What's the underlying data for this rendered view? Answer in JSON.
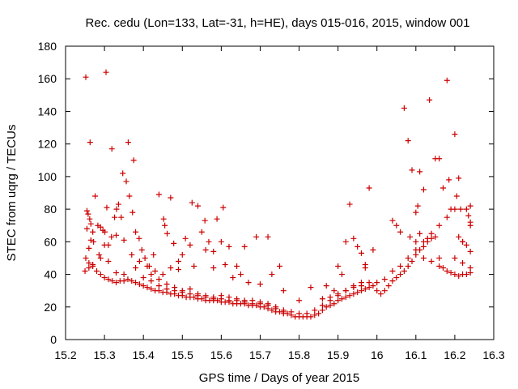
{
  "chart_data": {
    "type": "scatter",
    "title": "Rec. cedu (Lon=133, Lat=-31, h=HE), days 015-016, 2015, window 001",
    "xlabel": "GPS time / Days of year 2015",
    "ylabel": "STEC from uqrg / TECUs",
    "xlim": [
      15.2,
      16.3
    ],
    "ylim": [
      0,
      180
    ],
    "xticks": [
      15.2,
      15.3,
      15.4,
      15.5,
      15.6,
      15.7,
      15.8,
      15.9,
      16.0,
      16.1,
      16.2,
      16.3
    ],
    "xtick_labels": [
      "15.2",
      "15.3",
      "15.4",
      "15.5",
      "15.6",
      "15.7",
      "15.8",
      "15.9",
      "16",
      "16.1",
      "16.2",
      "16.3"
    ],
    "yticks": [
      0,
      20,
      40,
      60,
      80,
      100,
      120,
      140,
      160,
      180
    ],
    "ytick_labels": [
      "0",
      "20",
      "40",
      "60",
      "80",
      "100",
      "120",
      "140",
      "160",
      "180"
    ],
    "grid": false,
    "marker": "plus",
    "color": "#cc0000",
    "points": [
      [
        15.252,
        161
      ],
      [
        15.263,
        121
      ],
      [
        15.304,
        164
      ],
      [
        15.319,
        117
      ],
      [
        15.361,
        121
      ],
      [
        15.375,
        110
      ],
      [
        15.255,
        79
      ],
      [
        15.258,
        77
      ],
      [
        15.262,
        74
      ],
      [
        15.265,
        71
      ],
      [
        15.27,
        66
      ],
      [
        15.276,
        88
      ],
      [
        15.283,
        70
      ],
      [
        15.29,
        69
      ],
      [
        15.296,
        67
      ],
      [
        15.301,
        66
      ],
      [
        15.306,
        81
      ],
      [
        15.31,
        58
      ],
      [
        15.318,
        63
      ],
      [
        15.326,
        75
      ],
      [
        15.331,
        80
      ],
      [
        15.336,
        83
      ],
      [
        15.343,
        75
      ],
      [
        15.347,
        102
      ],
      [
        15.356,
        97
      ],
      [
        15.364,
        88
      ],
      [
        15.372,
        78
      ],
      [
        15.38,
        66
      ],
      [
        15.389,
        62
      ],
      [
        15.396,
        55
      ],
      [
        15.404,
        50
      ],
      [
        15.415,
        45
      ],
      [
        15.426,
        52
      ],
      [
        15.44,
        89
      ],
      [
        15.452,
        74
      ],
      [
        15.455,
        70
      ],
      [
        15.461,
        65
      ],
      [
        15.47,
        87
      ],
      [
        15.478,
        59
      ],
      [
        15.49,
        48
      ],
      [
        15.5,
        52
      ],
      [
        15.508,
        62
      ],
      [
        15.525,
        84
      ],
      [
        15.54,
        82
      ],
      [
        15.55,
        66
      ],
      [
        15.558,
        73
      ],
      [
        15.568,
        60
      ],
      [
        15.58,
        54
      ],
      [
        15.589,
        74
      ],
      [
        15.6,
        60
      ],
      [
        15.605,
        81
      ],
      [
        15.62,
        57
      ],
      [
        15.64,
        45
      ],
      [
        15.66,
        57
      ],
      [
        15.69,
        63
      ],
      [
        15.72,
        63
      ],
      [
        15.75,
        45
      ],
      [
        15.255,
        68
      ],
      [
        15.26,
        56
      ],
      [
        15.265,
        61
      ],
      [
        15.272,
        60
      ],
      [
        15.286,
        52
      ],
      [
        15.3,
        58
      ],
      [
        15.33,
        64
      ],
      [
        15.35,
        61
      ],
      [
        15.37,
        52
      ],
      [
        15.39,
        48
      ],
      [
        15.41,
        45
      ],
      [
        15.43,
        42
      ],
      [
        15.45,
        40
      ],
      [
        15.47,
        44
      ],
      [
        15.49,
        43
      ],
      [
        15.52,
        58
      ],
      [
        15.53,
        45
      ],
      [
        15.56,
        55
      ],
      [
        15.58,
        44
      ],
      [
        15.61,
        46
      ],
      [
        15.63,
        38
      ],
      [
        15.65,
        40
      ],
      [
        15.67,
        35
      ],
      [
        15.7,
        34
      ],
      [
        15.73,
        40
      ],
      [
        15.76,
        30
      ],
      [
        15.8,
        24
      ],
      [
        15.83,
        32
      ],
      [
        15.87,
        33
      ],
      [
        15.89,
        30
      ],
      [
        15.252,
        50
      ],
      [
        15.26,
        47
      ],
      [
        15.27,
        45
      ],
      [
        15.28,
        42
      ],
      [
        15.29,
        40
      ],
      [
        15.3,
        38
      ],
      [
        15.31,
        37
      ],
      [
        15.32,
        36
      ],
      [
        15.33,
        35
      ],
      [
        15.34,
        36
      ],
      [
        15.35,
        36
      ],
      [
        15.36,
        37
      ],
      [
        15.37,
        36
      ],
      [
        15.38,
        35
      ],
      [
        15.39,
        34
      ],
      [
        15.4,
        33
      ],
      [
        15.41,
        32
      ],
      [
        15.42,
        31
      ],
      [
        15.43,
        30
      ],
      [
        15.44,
        30
      ],
      [
        15.45,
        29
      ],
      [
        15.46,
        29
      ],
      [
        15.47,
        28
      ],
      [
        15.48,
        28
      ],
      [
        15.49,
        27
      ],
      [
        15.5,
        27
      ],
      [
        15.51,
        26
      ],
      [
        15.52,
        26
      ],
      [
        15.53,
        26
      ],
      [
        15.54,
        25
      ],
      [
        15.55,
        25
      ],
      [
        15.56,
        24
      ],
      [
        15.57,
        24
      ],
      [
        15.58,
        24
      ],
      [
        15.59,
        24
      ],
      [
        15.6,
        23
      ],
      [
        15.61,
        23
      ],
      [
        15.62,
        23
      ],
      [
        15.63,
        22
      ],
      [
        15.64,
        22
      ],
      [
        15.65,
        22
      ],
      [
        15.66,
        22
      ],
      [
        15.67,
        21
      ],
      [
        15.68,
        21
      ],
      [
        15.69,
        21
      ],
      [
        15.7,
        20
      ],
      [
        15.71,
        20
      ],
      [
        15.72,
        19
      ],
      [
        15.73,
        18
      ],
      [
        15.74,
        17
      ],
      [
        15.75,
        17
      ],
      [
        15.76,
        16
      ],
      [
        15.77,
        16
      ],
      [
        15.78,
        15
      ],
      [
        15.79,
        14
      ],
      [
        15.8,
        14
      ],
      [
        15.81,
        14
      ],
      [
        15.82,
        14
      ],
      [
        15.83,
        14
      ],
      [
        15.84,
        15
      ],
      [
        15.85,
        16
      ],
      [
        15.86,
        18
      ],
      [
        15.87,
        20
      ],
      [
        15.88,
        21
      ],
      [
        15.89,
        22
      ],
      [
        15.9,
        24
      ],
      [
        15.91,
        25
      ],
      [
        15.92,
        26
      ],
      [
        15.93,
        27
      ],
      [
        15.94,
        28
      ],
      [
        15.95,
        29
      ],
      [
        15.96,
        30
      ],
      [
        15.97,
        31
      ],
      [
        15.98,
        32
      ],
      [
        15.99,
        33
      ],
      [
        15.25,
        42
      ],
      [
        15.26,
        44
      ],
      [
        15.27,
        46
      ],
      [
        15.29,
        50
      ],
      [
        15.31,
        48
      ],
      [
        15.33,
        41
      ],
      [
        15.35,
        40
      ],
      [
        15.38,
        44
      ],
      [
        15.4,
        38
      ],
      [
        15.42,
        36
      ],
      [
        15.44,
        33
      ],
      [
        15.46,
        31
      ],
      [
        15.48,
        30
      ],
      [
        15.5,
        29
      ],
      [
        15.52,
        31
      ],
      [
        15.54,
        28
      ],
      [
        15.56,
        27
      ],
      [
        15.58,
        26
      ],
      [
        15.6,
        27
      ],
      [
        15.62,
        26
      ],
      [
        15.64,
        25
      ],
      [
        15.66,
        24
      ],
      [
        15.68,
        24
      ],
      [
        15.7,
        23
      ],
      [
        15.72,
        22
      ],
      [
        15.74,
        20
      ],
      [
        15.76,
        18
      ],
      [
        15.78,
        17
      ],
      [
        15.8,
        16
      ],
      [
        15.82,
        16
      ],
      [
        15.84,
        18
      ],
      [
        15.86,
        21
      ],
      [
        15.88,
        24
      ],
      [
        15.9,
        27
      ],
      [
        15.92,
        30
      ],
      [
        15.94,
        33
      ],
      [
        15.96,
        35
      ],
      [
        15.42,
        40
      ],
      [
        15.44,
        37
      ],
      [
        15.46,
        34
      ],
      [
        15.48,
        32
      ],
      [
        15.5,
        30
      ],
      [
        15.52,
        28
      ],
      [
        15.54,
        27
      ],
      [
        15.56,
        26
      ],
      [
        15.58,
        25
      ],
      [
        15.6,
        25
      ],
      [
        15.62,
        24
      ],
      [
        15.64,
        24
      ],
      [
        15.66,
        23
      ],
      [
        15.68,
        22
      ],
      [
        15.7,
        22
      ],
      [
        15.72,
        21
      ],
      [
        15.74,
        19
      ],
      [
        15.76,
        17
      ],
      [
        15.86,
        25
      ],
      [
        15.88,
        26
      ],
      [
        15.9,
        28
      ],
      [
        15.92,
        30
      ],
      [
        15.94,
        32
      ],
      [
        15.96,
        33
      ],
      [
        15.98,
        35
      ],
      [
        15.9,
        45
      ],
      [
        15.91,
        40
      ],
      [
        15.92,
        60
      ],
      [
        15.93,
        83
      ],
      [
        15.94,
        62
      ],
      [
        15.95,
        57
      ],
      [
        15.96,
        53
      ],
      [
        15.97,
        46
      ],
      [
        15.98,
        93
      ],
      [
        15.99,
        55
      ],
      [
        15.97,
        44
      ],
      [
        16.0,
        30
      ],
      [
        16.01,
        28
      ],
      [
        16.02,
        30
      ],
      [
        16.03,
        33
      ],
      [
        16.04,
        36
      ],
      [
        16.05,
        38
      ],
      [
        16.06,
        40
      ],
      [
        16.07,
        42
      ],
      [
        16.08,
        45
      ],
      [
        16.09,
        48
      ],
      [
        16.1,
        52
      ],
      [
        16.11,
        55
      ],
      [
        16.12,
        57
      ],
      [
        16.13,
        60
      ],
      [
        16.14,
        62
      ],
      [
        16.15,
        63
      ],
      [
        16.16,
        50
      ],
      [
        16.0,
        35
      ],
      [
        16.02,
        37
      ],
      [
        16.04,
        42
      ],
      [
        16.06,
        45
      ],
      [
        16.08,
        50
      ],
      [
        16.1,
        55
      ],
      [
        16.12,
        60
      ],
      [
        16.14,
        65
      ],
      [
        16.16,
        70
      ],
      [
        16.18,
        75
      ],
      [
        16.2,
        80
      ],
      [
        16.04,
        73
      ],
      [
        16.05,
        70
      ],
      [
        16.06,
        66
      ],
      [
        16.07,
        142
      ],
      [
        16.08,
        122
      ],
      [
        16.085,
        63
      ],
      [
        16.09,
        104
      ],
      [
        16.1,
        78
      ],
      [
        16.105,
        82
      ],
      [
        16.11,
        103
      ],
      [
        16.12,
        92
      ],
      [
        16.13,
        62
      ],
      [
        16.135,
        147
      ],
      [
        16.15,
        111
      ],
      [
        16.16,
        111
      ],
      [
        16.17,
        93
      ],
      [
        16.18,
        159
      ],
      [
        16.185,
        98
      ],
      [
        16.19,
        80
      ],
      [
        16.2,
        126
      ],
      [
        16.205,
        88
      ],
      [
        16.21,
        99
      ],
      [
        16.215,
        80
      ],
      [
        16.22,
        60
      ],
      [
        16.23,
        80
      ],
      [
        16.235,
        76
      ],
      [
        16.24,
        82
      ],
      [
        16.24,
        72
      ],
      [
        16.24,
        70
      ],
      [
        16.23,
        58
      ],
      [
        16.1,
        60
      ],
      [
        16.11,
        65
      ],
      [
        16.12,
        50
      ],
      [
        16.14,
        48
      ],
      [
        16.16,
        45
      ],
      [
        16.17,
        44
      ],
      [
        16.18,
        42
      ],
      [
        16.19,
        41
      ],
      [
        16.2,
        40
      ],
      [
        16.21,
        39
      ],
      [
        16.22,
        40
      ],
      [
        16.23,
        40
      ],
      [
        16.24,
        44
      ],
      [
        16.24,
        41
      ],
      [
        16.2,
        50
      ],
      [
        16.22,
        47
      ],
      [
        16.24,
        54
      ],
      [
        16.21,
        63
      ],
      [
        16.22,
        60
      ]
    ]
  }
}
